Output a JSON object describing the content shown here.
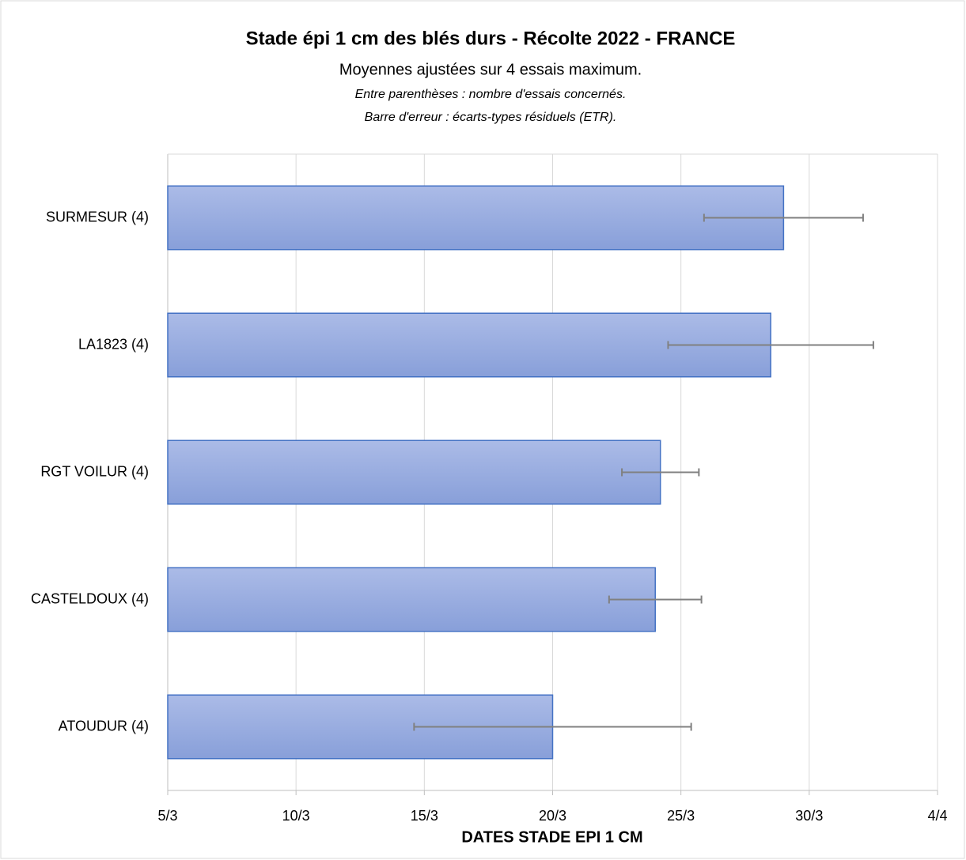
{
  "chart_data": {
    "type": "bar",
    "orientation": "horizontal",
    "title": "Stade épi 1 cm des blés durs - Récolte 2022 - FRANCE",
    "subtitle": "Moyennes ajustées sur 4 essais maximum.",
    "notes": [
      "Entre parenthèses : nombre d'essais concernés.",
      "Barre d'erreur : écarts-types résiduels (ETR)."
    ],
    "x_label": "DATES STADE EPI 1 CM",
    "categories": [
      "SURMESUR (4)",
      "LA1823 (4)",
      "RGT VOILUR (4)",
      "CASTELDOUX (4)",
      "ATOUDUR (4)"
    ],
    "values": [
      29.0,
      28.5,
      24.2,
      24.0,
      20.0
    ],
    "errors": [
      3.1,
      4.0,
      1.5,
      1.8,
      5.4
    ],
    "color": "#4472c4",
    "error_color": "#808080",
    "xlim": [
      5,
      35
    ],
    "xticks": [
      {
        "value": 5,
        "label": "5/3"
      },
      {
        "value": 10,
        "label": "10/3"
      },
      {
        "value": 15,
        "label": "15/3"
      },
      {
        "value": 20,
        "label": "20/3"
      },
      {
        "value": 25,
        "label": "25/3"
      },
      {
        "value": 30,
        "label": "30/3"
      },
      {
        "value": 35,
        "label": "4/4"
      }
    ],
    "grid": true
  }
}
